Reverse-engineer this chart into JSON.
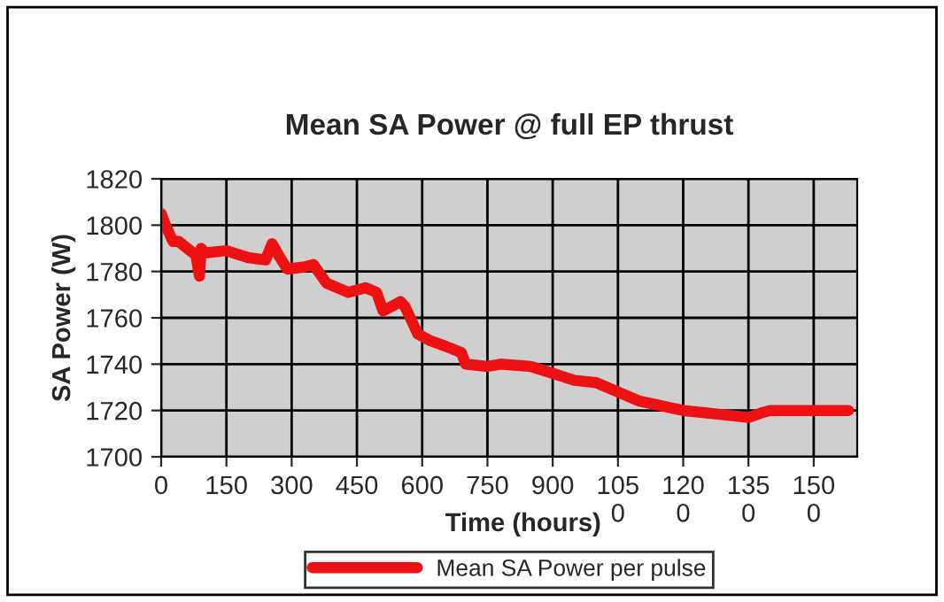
{
  "chart_data": {
    "type": "line",
    "title": "Mean SA Power @ full EP thrust",
    "xlabel": "Time (hours)",
    "ylabel": "SA Power (W)",
    "xlim": [
      0,
      1600
    ],
    "xticks": [
      0,
      150,
      300,
      450,
      600,
      750,
      900,
      1050,
      1200,
      1350,
      1500
    ],
    "ylim": [
      1700,
      1820
    ],
    "yticks": [
      1700,
      1720,
      1740,
      1760,
      1780,
      1800,
      1820
    ],
    "grid": true,
    "legend": "bottom",
    "line_style": "solid",
    "series": [
      {
        "name": "Mean SA Power per pulse",
        "color": "#ee1111",
        "x": [
          0,
          10,
          27,
          40,
          60,
          80,
          88,
          92,
          100,
          150,
          200,
          240,
          255,
          270,
          290,
          330,
          350,
          380,
          430,
          470,
          495,
          510,
          550,
          560,
          590,
          620,
          650,
          690,
          700,
          750,
          780,
          850,
          900,
          950,
          1000,
          1050,
          1100,
          1150,
          1200,
          1250,
          1300,
          1350,
          1380,
          1400,
          1500,
          1580
        ],
        "values": [
          1805,
          1800,
          1793,
          1793,
          1790,
          1787,
          1778,
          1790,
          1788,
          1789,
          1786,
          1785,
          1792,
          1787,
          1781,
          1782,
          1783,
          1775,
          1771,
          1773,
          1771,
          1763,
          1767,
          1765,
          1753,
          1750,
          1748,
          1745,
          1740,
          1739,
          1740,
          1739,
          1736,
          1733,
          1732,
          1728,
          1724,
          1722,
          1720,
          1719,
          1718,
          1717,
          1719,
          1720,
          1720,
          1720
        ]
      }
    ]
  }
}
